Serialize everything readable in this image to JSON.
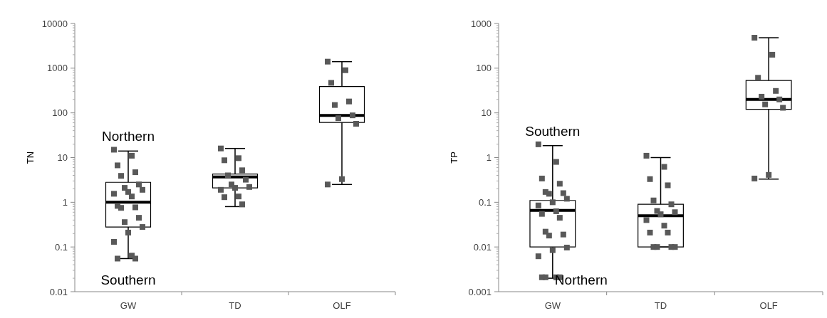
{
  "chart_data": [
    {
      "type": "box",
      "categories": [
        "GW",
        "TD",
        "OLF"
      ],
      "ylabel": "TN",
      "log": true,
      "ylim": [
        0.01,
        10000
      ],
      "yticks": [
        0.01,
        0.1,
        1,
        10,
        100,
        1000,
        10000
      ],
      "marker": "square",
      "color": "#000000",
      "boxes": [
        {
          "low": 0.055,
          "q1": 0.28,
          "median": 1.0,
          "q3": 2.8,
          "high": 14
        },
        {
          "low": 0.8,
          "q1": 2.1,
          "median": 3.7,
          "q3": 4.3,
          "high": 16
        },
        {
          "low": 2.5,
          "q1": 61,
          "median": 88,
          "q3": 390,
          "high": 1400
        }
      ],
      "series": [
        {
          "type": "scatter",
          "color": "#595959",
          "x": [
            "GW",
            "GW",
            "GW",
            "GW",
            "GW",
            "GW",
            "GW",
            "GW",
            "GW",
            "GW",
            "GW",
            "GW",
            "GW",
            "GW",
            "GW",
            "GW",
            "GW",
            "GW",
            "GW",
            "GW",
            "GW",
            "GW"
          ],
          "values": [
            15,
            11,
            6.7,
            4.7,
            3.9,
            2.5,
            2.1,
            1.9,
            1.7,
            1.55,
            1.35,
            0.83,
            0.77,
            0.75,
            0.45,
            0.36,
            0.28,
            0.21,
            0.13,
            0.064,
            0.055,
            0.055
          ]
        },
        {
          "type": "scatter",
          "color": "#595959",
          "x": [
            "TD",
            "TD",
            "TD",
            "TD",
            "TD",
            "TD",
            "TD",
            "TD",
            "TD",
            "TD",
            "TD",
            "TD",
            "TD"
          ],
          "values": [
            16,
            9.7,
            8.7,
            5.2,
            4.0,
            3.2,
            2.5,
            2.2,
            2.1,
            1.9,
            1.35,
            1.3,
            0.9
          ]
        },
        {
          "type": "scatter",
          "color": "#595959",
          "x": [
            "OLF",
            "OLF",
            "OLF",
            "OLF",
            "OLF",
            "OLF",
            "OLF",
            "OLF",
            "OLF",
            "OLF"
          ],
          "values": [
            1400,
            900,
            470,
            180,
            150,
            88,
            76,
            57,
            3.3,
            2.5
          ]
        }
      ],
      "annotations": [
        "Northern",
        "Southern"
      ]
    },
    {
      "type": "box",
      "categories": [
        "GW",
        "TD",
        "OLF"
      ],
      "ylabel": "TP",
      "log": true,
      "ylim": [
        0.001,
        1000
      ],
      "yticks": [
        0.001,
        0.01,
        0.1,
        1,
        10,
        100,
        1000
      ],
      "marker": "square",
      "color": "#000000",
      "boxes": [
        {
          "low": 0.002,
          "q1": 0.01,
          "median": 0.066,
          "q3": 0.11,
          "high": 1.85
        },
        {
          "low": 0.01,
          "q1": 0.01,
          "median": 0.05,
          "q3": 0.09,
          "high": 1.0
        },
        {
          "low": 0.33,
          "q1": 12,
          "median": 20,
          "q3": 53,
          "high": 480
        }
      ],
      "series": [
        {
          "type": "scatter",
          "color": "#595959",
          "x": [
            "GW",
            "GW",
            "GW",
            "GW",
            "GW",
            "GW",
            "GW",
            "GW",
            "GW",
            "GW",
            "GW",
            "GW",
            "GW",
            "GW",
            "GW",
            "GW",
            "GW",
            "GW",
            "GW",
            "GW",
            "GW",
            "GW",
            "GW"
          ],
          "values": [
            1.98,
            0.8,
            0.34,
            0.26,
            0.17,
            0.16,
            0.155,
            0.12,
            0.1,
            0.085,
            0.063,
            0.055,
            0.045,
            0.022,
            0.019,
            0.018,
            0.0097,
            0.0085,
            0.0062,
            0.0021,
            0.0021,
            0.0021,
            0.0021
          ]
        },
        {
          "type": "scatter",
          "color": "#595959",
          "x": [
            "TD",
            "TD",
            "TD",
            "TD",
            "TD",
            "TD",
            "TD",
            "TD",
            "TD",
            "TD",
            "TD",
            "TD",
            "TD",
            "TD",
            "TD",
            "TD",
            "TD"
          ],
          "values": [
            1.1,
            0.62,
            0.33,
            0.24,
            0.11,
            0.09,
            0.064,
            0.06,
            0.054,
            0.04,
            0.03,
            0.021,
            0.021,
            0.01,
            0.01,
            0.01,
            0.01
          ]
        },
        {
          "type": "scatter",
          "color": "#595959",
          "x": [
            "OLF",
            "OLF",
            "OLF",
            "OLF",
            "OLF",
            "OLF",
            "OLF",
            "OLF",
            "OLF",
            "OLF"
          ],
          "values": [
            480,
            200,
            61,
            31,
            23,
            20,
            15.5,
            13,
            0.41,
            0.34
          ]
        }
      ],
      "annotations": [
        "Southern",
        "Northern"
      ]
    }
  ]
}
